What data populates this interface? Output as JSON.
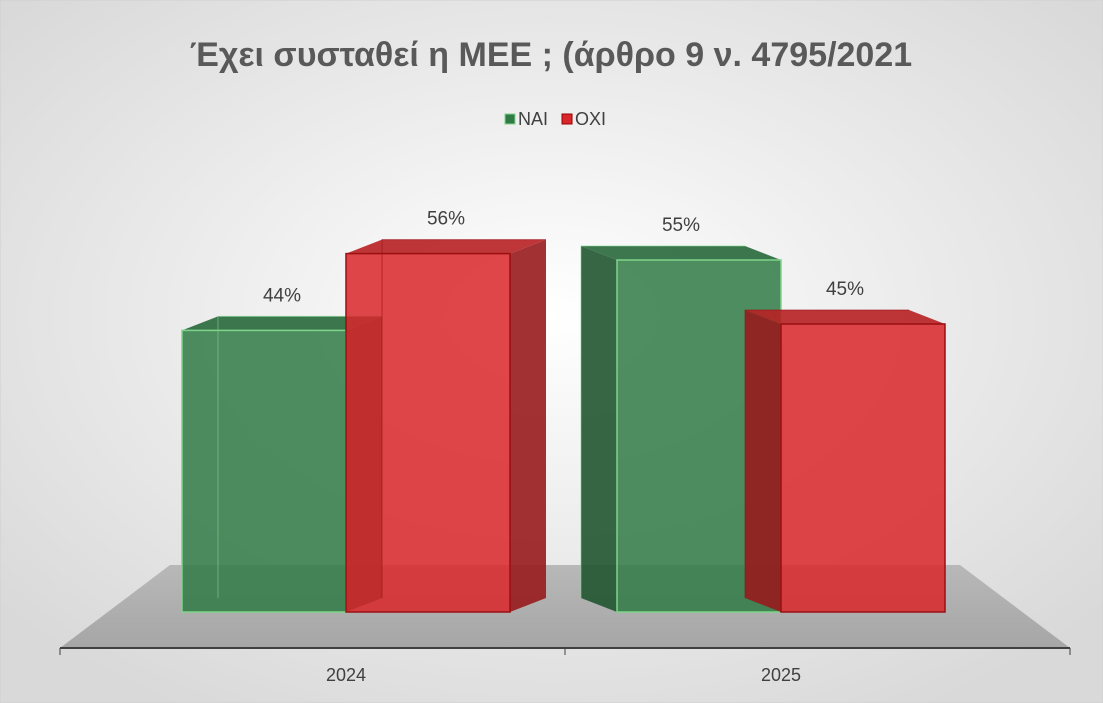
{
  "chart_data": {
    "type": "bar3d",
    "title": "Έχει συσταθεί η ΜΕΕ ; (άρθρο 9 ν. 4795/2021",
    "categories": [
      "2024",
      "2025"
    ],
    "series": [
      {
        "name": "ΝΑΙ",
        "color": "#2f7a45",
        "values": [
          44,
          55
        ],
        "value_labels": [
          "44%",
          "55%"
        ]
      },
      {
        "name": "ΟΧΙ",
        "color": "#d8262a",
        "values": [
          56,
          45
        ],
        "value_labels": [
          "56%",
          "45%"
        ]
      }
    ],
    "ylim": [
      0,
      80
    ]
  }
}
